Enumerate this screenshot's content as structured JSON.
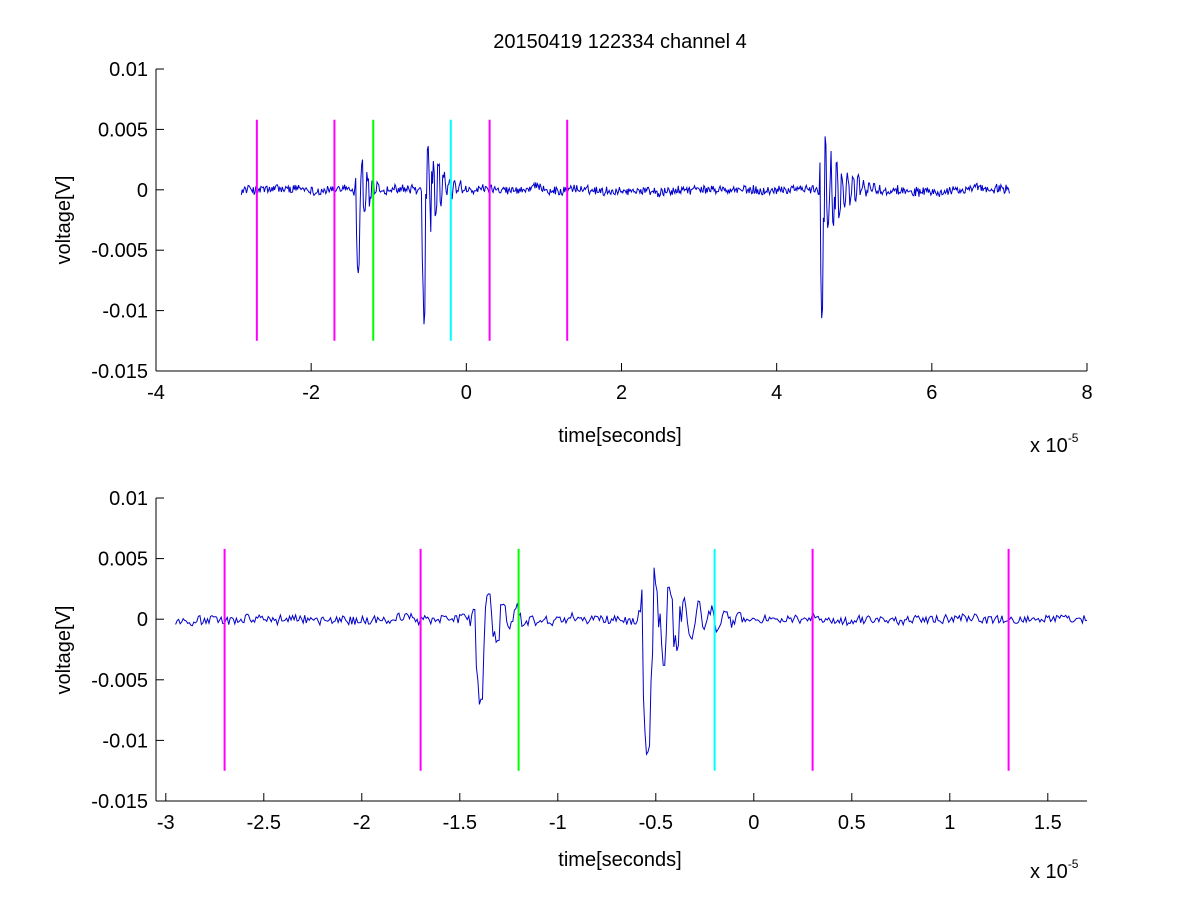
{
  "figure": {
    "title": "20150419 122334 channel 4",
    "background": "#ffffff"
  },
  "chart_data": [
    {
      "type": "line",
      "title": "20150419 122334 channel 4",
      "xlabel": "time[seconds]",
      "ylabel": "voltage[V]",
      "x_exponent_label": "x 10",
      "x_exponent": "-5",
      "xlim": [
        -4,
        8
      ],
      "ylim": [
        -0.015,
        0.01
      ],
      "xticks": [
        -4,
        -2,
        0,
        2,
        4,
        6,
        8
      ],
      "xtick_labels": [
        "-4",
        "-2",
        "0",
        "2",
        "4",
        "6",
        "8"
      ],
      "yticks": [
        -0.015,
        -0.01,
        -0.005,
        0,
        0.005,
        0.01
      ],
      "ytick_labels": [
        "-0.015",
        "-0.01",
        "-0.005",
        "0",
        "0.005",
        "0.01"
      ],
      "grid": false,
      "signal": {
        "color": "#0000cc",
        "x_range": [
          -2.9,
          7.0
        ],
        "events": [
          {
            "t": -1.4,
            "amp": -0.0072,
            "width": 0.25
          },
          {
            "t": -0.55,
            "amp": -0.0113,
            "width": 0.35
          },
          {
            "t": 4.58,
            "amp": -0.0105,
            "width": 0.5
          }
        ]
      },
      "markers": [
        {
          "x": -2.7,
          "color": "#ff00ff",
          "y0": -0.0125,
          "y1": 0.0058
        },
        {
          "x": -1.7,
          "color": "#ff00ff",
          "y0": -0.0125,
          "y1": 0.0058
        },
        {
          "x": -1.2,
          "color": "#00ff00",
          "y0": -0.0125,
          "y1": 0.0058
        },
        {
          "x": -0.2,
          "color": "#00ffff",
          "y0": -0.0125,
          "y1": 0.0058
        },
        {
          "x": 0.3,
          "color": "#ff00ff",
          "y0": -0.0125,
          "y1": 0.0058
        },
        {
          "x": 1.3,
          "color": "#ff00ff",
          "y0": -0.0125,
          "y1": 0.0058
        }
      ]
    },
    {
      "type": "line",
      "title": "",
      "xlabel": "time[seconds]",
      "ylabel": "voltage[V]",
      "x_exponent_label": "x 10",
      "x_exponent": "-5",
      "xlim": [
        -3.05,
        1.7
      ],
      "ylim": [
        -0.015,
        0.01
      ],
      "xticks": [
        -3,
        -2.5,
        -2,
        -1.5,
        -1,
        -0.5,
        0,
        0.5,
        1,
        1.5
      ],
      "xtick_labels": [
        "-3",
        "-2.5",
        "-2",
        "-1.5",
        "-1",
        "-0.5",
        "0",
        "0.5",
        "1",
        "1.5"
      ],
      "yticks": [
        -0.015,
        -0.01,
        -0.005,
        0,
        0.005,
        0.01
      ],
      "ytick_labels": [
        "-0.015",
        "-0.01",
        "-0.005",
        "0",
        "0.005",
        "0.01"
      ],
      "grid": false,
      "signal": {
        "color": "#0000cc",
        "x_range": [
          -2.95,
          1.7
        ],
        "events": [
          {
            "t": -1.4,
            "amp": -0.0072,
            "width": 0.25
          },
          {
            "t": -0.55,
            "amp": -0.0113,
            "width": 0.35
          }
        ]
      },
      "markers": [
        {
          "x": -2.7,
          "color": "#ff00ff",
          "y0": -0.0125,
          "y1": 0.0058
        },
        {
          "x": -1.7,
          "color": "#ff00ff",
          "y0": -0.0125,
          "y1": 0.0058
        },
        {
          "x": -1.2,
          "color": "#00ff00",
          "y0": -0.0125,
          "y1": 0.0058
        },
        {
          "x": -0.2,
          "color": "#00ffff",
          "y0": -0.0125,
          "y1": 0.0058
        },
        {
          "x": 0.3,
          "color": "#ff00ff",
          "y0": -0.0125,
          "y1": 0.0058
        },
        {
          "x": 1.3,
          "color": "#ff00ff",
          "y0": -0.0125,
          "y1": 0.0058
        }
      ]
    }
  ]
}
